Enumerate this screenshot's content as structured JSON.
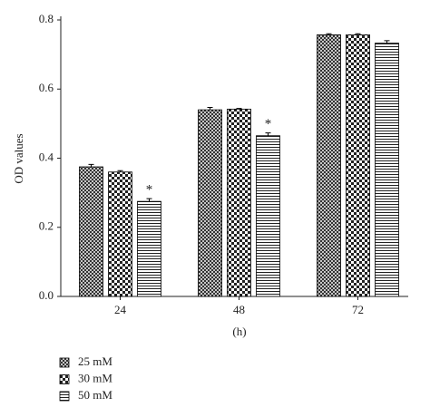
{
  "chart_data": {
    "type": "bar",
    "categories": [
      "24",
      "48",
      "72"
    ],
    "series": [
      {
        "name": "25 mM",
        "color": "#000000",
        "pattern": "crosshatch",
        "values": [
          0.375,
          0.54,
          0.757
        ],
        "errors": [
          0.007,
          0.007,
          0.003
        ]
      },
      {
        "name": "30 mM",
        "color": "#000000",
        "pattern": "checker",
        "values": [
          0.36,
          0.542,
          0.757
        ],
        "errors": [
          0.004,
          0.002,
          0.003
        ]
      },
      {
        "name": "50 mM",
        "color": "#000000",
        "pattern": "horizontal",
        "values": [
          0.275,
          0.465,
          0.733
        ],
        "errors": [
          0.008,
          0.008,
          0.007
        ]
      }
    ],
    "annotations": [
      {
        "text": "*",
        "series": 2,
        "category": 0
      },
      {
        "text": "*",
        "series": 2,
        "category": 1
      }
    ],
    "ylabel": "OD values",
    "xlabel": "(h)",
    "ylim": [
      0,
      0.8
    ],
    "yticks": [
      {
        "value": 0,
        "label": "0.0"
      },
      0.2,
      0.4,
      0.6,
      0.8
    ],
    "legend": "bottom-left"
  }
}
